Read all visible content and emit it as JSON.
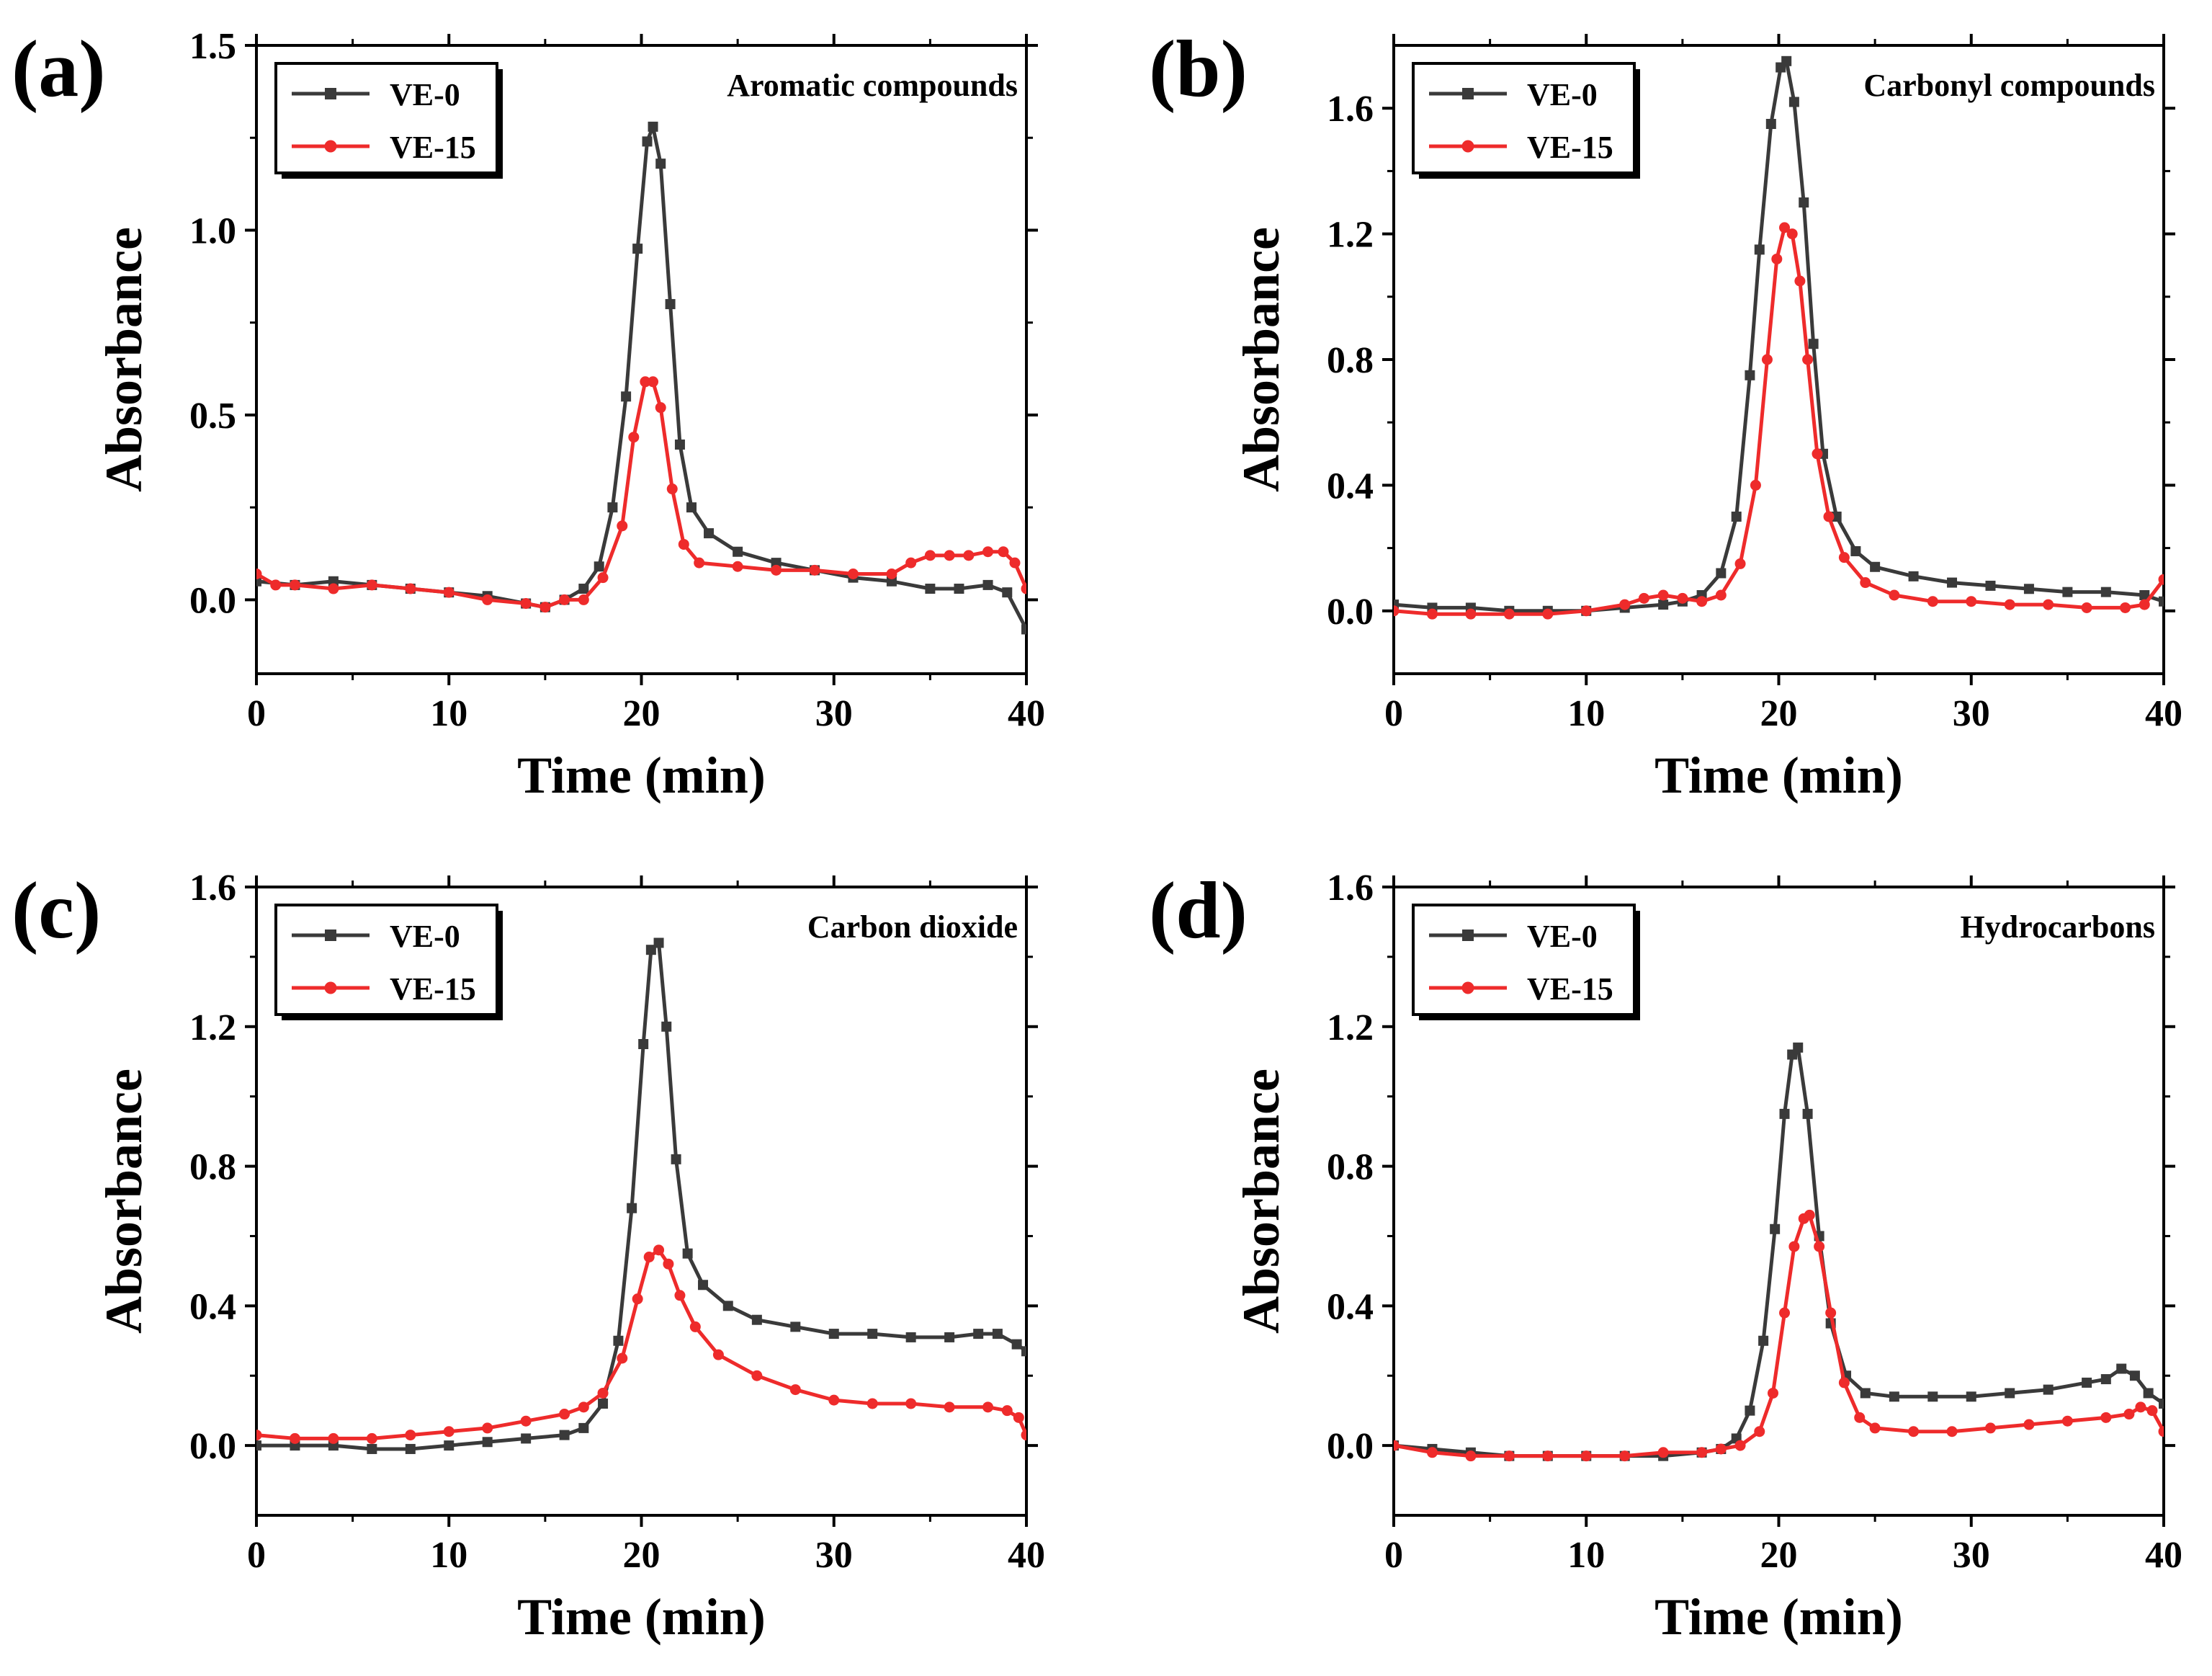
{
  "colors": {
    "VE-0": "#3a3a3a",
    "VE-15": "#ee2b2b",
    "axis": "#000000"
  },
  "chart_data": [
    {
      "type": "line",
      "panel_label": "(a)",
      "annotation": "Aromatic compounds",
      "xlabel": "Time (min)",
      "ylabel": "Absorbance",
      "xlim": [
        0,
        40
      ],
      "ylim": [
        -0.2,
        1.5
      ],
      "xticks": [
        0,
        10,
        20,
        30,
        40
      ],
      "xtick_labels": [
        "0",
        "10",
        "20",
        "30",
        "40"
      ],
      "yticks": [
        0.0,
        0.5,
        1.0,
        1.5
      ],
      "ytick_labels": [
        "0.0",
        "0.5",
        "1.0",
        "1.5"
      ],
      "legend": "top-left",
      "series": [
        {
          "name": "VE-0",
          "color": "#3a3a3a",
          "marker": "square",
          "x": [
            0,
            2,
            4,
            6,
            8,
            10,
            12,
            14,
            15,
            16,
            17,
            17.8,
            18.5,
            19.2,
            19.8,
            20.3,
            20.6,
            21.0,
            21.5,
            22.0,
            22.6,
            23.5,
            25,
            27,
            29,
            31,
            33,
            35,
            36.5,
            38,
            39,
            40
          ],
          "y": [
            0.05,
            0.04,
            0.05,
            0.04,
            0.03,
            0.02,
            0.01,
            -0.01,
            -0.02,
            0.0,
            0.03,
            0.09,
            0.25,
            0.55,
            0.95,
            1.24,
            1.28,
            1.18,
            0.8,
            0.42,
            0.25,
            0.18,
            0.13,
            0.1,
            0.08,
            0.06,
            0.05,
            0.03,
            0.03,
            0.04,
            0.02,
            -0.08
          ]
        },
        {
          "name": "VE-15",
          "color": "#ee2b2b",
          "marker": "circle",
          "x": [
            0,
            1,
            2,
            4,
            6,
            8,
            10,
            12,
            14,
            15,
            16,
            17,
            18,
            19,
            19.6,
            20.2,
            20.6,
            21.0,
            21.6,
            22.2,
            23,
            25,
            27,
            29,
            31,
            33,
            34,
            35,
            36,
            37,
            38,
            38.8,
            39.4,
            40
          ],
          "y": [
            0.07,
            0.04,
            0.04,
            0.03,
            0.04,
            0.03,
            0.02,
            0.0,
            -0.01,
            -0.02,
            0.0,
            0.0,
            0.06,
            0.2,
            0.44,
            0.59,
            0.59,
            0.52,
            0.3,
            0.15,
            0.1,
            0.09,
            0.08,
            0.08,
            0.07,
            0.07,
            0.1,
            0.12,
            0.12,
            0.12,
            0.13,
            0.13,
            0.1,
            0.03
          ]
        }
      ]
    },
    {
      "type": "line",
      "panel_label": "(b)",
      "annotation": "Carbonyl compounds",
      "xlabel": "Time (min)",
      "ylabel": "Absorbance",
      "xlim": [
        0,
        40
      ],
      "ylim": [
        -0.2,
        1.8
      ],
      "xticks": [
        0,
        10,
        20,
        30,
        40
      ],
      "xtick_labels": [
        "0",
        "10",
        "20",
        "30",
        "40"
      ],
      "yticks": [
        0.0,
        0.4,
        0.8,
        1.2,
        1.6
      ],
      "ytick_labels": [
        "0.0",
        "0.4",
        "0.8",
        "1.2",
        "1.6"
      ],
      "legend": "top-left",
      "series": [
        {
          "name": "VE-0",
          "color": "#3a3a3a",
          "marker": "square",
          "x": [
            0,
            2,
            4,
            6,
            8,
            10,
            12,
            14,
            15,
            16,
            17,
            17.8,
            18.5,
            19.0,
            19.6,
            20.1,
            20.4,
            20.8,
            21.3,
            21.8,
            22.3,
            23,
            24,
            25,
            27,
            29,
            31,
            33,
            35,
            37,
            39,
            40
          ],
          "y": [
            0.02,
            0.01,
            0.01,
            0.0,
            0.0,
            0.0,
            0.01,
            0.02,
            0.03,
            0.05,
            0.12,
            0.3,
            0.75,
            1.15,
            1.55,
            1.73,
            1.75,
            1.62,
            1.3,
            0.85,
            0.5,
            0.3,
            0.19,
            0.14,
            0.11,
            0.09,
            0.08,
            0.07,
            0.06,
            0.06,
            0.05,
            0.03
          ]
        },
        {
          "name": "VE-15",
          "color": "#ee2b2b",
          "marker": "circle",
          "x": [
            0,
            2,
            4,
            6,
            8,
            10,
            12,
            13,
            14,
            15,
            16,
            17,
            18,
            18.8,
            19.4,
            19.9,
            20.3,
            20.7,
            21.1,
            21.5,
            22.0,
            22.6,
            23.4,
            24.5,
            26,
            28,
            30,
            32,
            34,
            36,
            38,
            39,
            40
          ],
          "y": [
            0.0,
            -0.01,
            -0.01,
            -0.01,
            -0.01,
            0.0,
            0.02,
            0.04,
            0.05,
            0.04,
            0.03,
            0.05,
            0.15,
            0.4,
            0.8,
            1.12,
            1.22,
            1.2,
            1.05,
            0.8,
            0.5,
            0.3,
            0.17,
            0.09,
            0.05,
            0.03,
            0.03,
            0.02,
            0.02,
            0.01,
            0.01,
            0.02,
            0.1
          ]
        }
      ]
    },
    {
      "type": "line",
      "panel_label": "(c)",
      "annotation": "Carbon dioxide",
      "xlabel": "Time (min)",
      "ylabel": "Absorbance",
      "xlim": [
        0,
        40
      ],
      "ylim": [
        -0.2,
        1.6
      ],
      "xticks": [
        0,
        10,
        20,
        30,
        40
      ],
      "xtick_labels": [
        "0",
        "10",
        "20",
        "30",
        "40"
      ],
      "yticks": [
        0.0,
        0.4,
        0.8,
        1.2,
        1.6
      ],
      "ytick_labels": [
        "0.0",
        "0.4",
        "0.8",
        "1.2",
        "1.6"
      ],
      "legend": "top-left",
      "series": [
        {
          "name": "VE-0",
          "color": "#3a3a3a",
          "marker": "square",
          "x": [
            0,
            2,
            4,
            6,
            8,
            10,
            12,
            14,
            16,
            17,
            18,
            18.8,
            19.5,
            20.1,
            20.5,
            20.9,
            21.3,
            21.8,
            22.4,
            23.2,
            24.5,
            26,
            28,
            30,
            32,
            34,
            36,
            37.5,
            38.5,
            39.5,
            40
          ],
          "y": [
            0.0,
            0.0,
            0.0,
            -0.01,
            -0.01,
            0.0,
            0.01,
            0.02,
            0.03,
            0.05,
            0.12,
            0.3,
            0.68,
            1.15,
            1.42,
            1.44,
            1.2,
            0.82,
            0.55,
            0.46,
            0.4,
            0.36,
            0.34,
            0.32,
            0.32,
            0.31,
            0.31,
            0.32,
            0.32,
            0.29,
            0.27
          ]
        },
        {
          "name": "VE-15",
          "color": "#ee2b2b",
          "marker": "circle",
          "x": [
            0,
            2,
            4,
            6,
            8,
            10,
            12,
            14,
            16,
            17,
            18,
            19,
            19.8,
            20.4,
            20.9,
            21.4,
            22,
            22.8,
            24,
            26,
            28,
            30,
            32,
            34,
            36,
            38,
            39,
            39.6,
            40
          ],
          "y": [
            0.03,
            0.02,
            0.02,
            0.02,
            0.03,
            0.04,
            0.05,
            0.07,
            0.09,
            0.11,
            0.15,
            0.25,
            0.42,
            0.54,
            0.56,
            0.52,
            0.43,
            0.34,
            0.26,
            0.2,
            0.16,
            0.13,
            0.12,
            0.12,
            0.11,
            0.11,
            0.1,
            0.08,
            0.03
          ]
        }
      ]
    },
    {
      "type": "line",
      "panel_label": "(d)",
      "annotation": "Hydrocarbons",
      "xlabel": "Time (min)",
      "ylabel": "Absorbance",
      "xlim": [
        0,
        40
      ],
      "ylim": [
        -0.2,
        1.6
      ],
      "xticks": [
        0,
        10,
        20,
        30,
        40
      ],
      "xtick_labels": [
        "0",
        "10",
        "20",
        "30",
        "40"
      ],
      "yticks": [
        0.0,
        0.4,
        0.8,
        1.2,
        1.6
      ],
      "ytick_labels": [
        "0.0",
        "0.4",
        "0.8",
        "1.2",
        "1.6"
      ],
      "legend": "top-left",
      "series": [
        {
          "name": "VE-0",
          "color": "#3a3a3a",
          "marker": "square",
          "x": [
            0,
            2,
            4,
            6,
            8,
            10,
            12,
            14,
            16,
            17,
            17.8,
            18.5,
            19.2,
            19.8,
            20.3,
            20.7,
            21.0,
            21.5,
            22.1,
            22.7,
            23.5,
            24.5,
            26,
            28,
            30,
            32,
            34,
            36,
            37,
            37.8,
            38.5,
            39.2,
            40
          ],
          "y": [
            0.0,
            -0.01,
            -0.02,
            -0.03,
            -0.03,
            -0.03,
            -0.03,
            -0.03,
            -0.02,
            -0.01,
            0.02,
            0.1,
            0.3,
            0.62,
            0.95,
            1.12,
            1.14,
            0.95,
            0.6,
            0.35,
            0.2,
            0.15,
            0.14,
            0.14,
            0.14,
            0.15,
            0.16,
            0.18,
            0.19,
            0.22,
            0.2,
            0.15,
            0.12
          ]
        },
        {
          "name": "VE-15",
          "color": "#ee2b2b",
          "marker": "circle",
          "x": [
            0,
            2,
            4,
            6,
            8,
            10,
            12,
            14,
            16,
            17,
            18,
            19,
            19.7,
            20.3,
            20.8,
            21.3,
            21.6,
            22.1,
            22.7,
            23.4,
            24.2,
            25,
            27,
            29,
            31,
            33,
            35,
            37,
            38.2,
            38.8,
            39.4,
            40
          ],
          "y": [
            0.0,
            -0.02,
            -0.03,
            -0.03,
            -0.03,
            -0.03,
            -0.03,
            -0.02,
            -0.02,
            -0.01,
            0.0,
            0.04,
            0.15,
            0.38,
            0.57,
            0.65,
            0.66,
            0.57,
            0.38,
            0.18,
            0.08,
            0.05,
            0.04,
            0.04,
            0.05,
            0.06,
            0.07,
            0.08,
            0.09,
            0.11,
            0.1,
            0.04
          ]
        }
      ]
    }
  ]
}
